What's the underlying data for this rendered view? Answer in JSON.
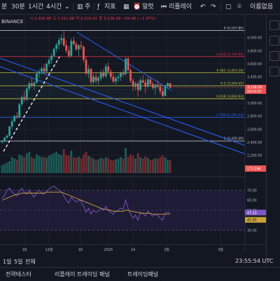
{
  "toolbar": {
    "timeframes": [
      "분",
      "30분",
      "1시간",
      "4시간"
    ],
    "candle_label": "주",
    "indicators_label": "지표",
    "alert_label": "얼럿",
    "replay_label": "리플레이",
    "undo_icon": "undo-icon",
    "redo_icon": "redo-icon",
    "right_label": "이름없음"
  },
  "legend": {
    "symbol": "BINANCE",
    "ohlc": "시 3,300.98 고 3,311.98 저 3,224.01 종 3,236.09 −64.90 (−1.97%)"
  },
  "price_axis": {
    "ticks": [
      "4,000.00",
      "3,800.00",
      "3,600.00",
      "3,400.00",
      "3,200.00",
      "3,000.00",
      "2,800.00",
      "2,600.00",
      "2,400.00",
      "2,200.00"
    ],
    "last_price": "3,236.09",
    "countdown": "09:04:00",
    "volume_badge": "173.59K",
    "rsi_values": [
      "70.00",
      "60.00",
      "50.00",
      "40.00",
      "30.00"
    ],
    "rsi_badge": "47.23",
    "rsi_ma_badge": "45.80"
  },
  "fib_levels": [
    {
      "label": "0 (4,107.80)",
      "price": 4107.8,
      "color": "#d1d4dc"
    },
    {
      "label": "0.236 (3,709.55)",
      "price": 3709.55,
      "color": "#f23645"
    },
    {
      "label": "0.382 (3,463.18)",
      "price": 3463.18,
      "color": "#c9c63a"
    },
    {
      "label": "0.5 (3,264.05)",
      "price": 3264.05,
      "color": "#c9c63a"
    },
    {
      "label": "0.618 (3,064.93)",
      "price": 3064.93,
      "color": "#c9c63a"
    },
    {
      "label": "0.786 (2,781.43)",
      "price": 2781.43,
      "color": "#2962ff"
    },
    {
      "label": "1 (2,420.30)",
      "price": 2420.3,
      "color": "#d1d4dc"
    }
  ],
  "time_axis": {
    "ticks": [
      "18",
      "12월",
      "16",
      "2025",
      "14",
      "2월",
      "3월"
    ]
  },
  "bottom_bar": {
    "ranges": [
      "1일",
      "5일",
      "전체"
    ],
    "time": "23:55:54 UTC",
    "tabs": [
      "전략테스터",
      "리플레이 트레이딩 패널",
      "트레이딩패널"
    ]
  },
  "chart_data": {
    "type": "candlestick",
    "y_range": [
      2100,
      4200
    ],
    "candles": [
      [
        2400,
        2430,
        2380,
        2410
      ],
      [
        2410,
        2480,
        2400,
        2470
      ],
      [
        2470,
        2520,
        2450,
        2500
      ],
      [
        2500,
        2650,
        2480,
        2640
      ],
      [
        2640,
        2760,
        2600,
        2720
      ],
      [
        2720,
        2820,
        2700,
        2800
      ],
      [
        2800,
        2860,
        2760,
        2780
      ],
      [
        2780,
        3000,
        2770,
        2980
      ],
      [
        2980,
        3120,
        2950,
        3090
      ],
      [
        3090,
        3180,
        3020,
        3050
      ],
      [
        3050,
        3240,
        3030,
        3220
      ],
      [
        3220,
        3330,
        3180,
        3300
      ],
      [
        3300,
        3380,
        3240,
        3260
      ],
      [
        3260,
        3330,
        3200,
        3310
      ],
      [
        3310,
        3470,
        3300,
        3450
      ],
      [
        3450,
        3520,
        3390,
        3480
      ],
      [
        3480,
        3560,
        3440,
        3530
      ],
      [
        3530,
        3600,
        3450,
        3480
      ],
      [
        3480,
        3620,
        3460,
        3600
      ],
      [
        3600,
        3700,
        3560,
        3660
      ],
      [
        3660,
        3760,
        3600,
        3720
      ],
      [
        3720,
        3850,
        3700,
        3830
      ],
      [
        3830,
        3920,
        3780,
        3890
      ],
      [
        3890,
        4000,
        3820,
        3960
      ],
      [
        3960,
        4050,
        3900,
        3990
      ],
      [
        3990,
        4107,
        3860,
        3880
      ],
      [
        3880,
        3960,
        3760,
        3800
      ],
      [
        3800,
        3870,
        3680,
        3720
      ],
      [
        3720,
        3990,
        3700,
        3950
      ],
      [
        3950,
        4010,
        3880,
        3900
      ],
      [
        3900,
        3940,
        3800,
        3820
      ],
      [
        3820,
        3900,
        3720,
        3880
      ],
      [
        3880,
        3950,
        3820,
        3860
      ],
      [
        3860,
        3880,
        3620,
        3660
      ],
      [
        3660,
        3720,
        3420,
        3450
      ],
      [
        3450,
        3580,
        3380,
        3520
      ],
      [
        3520,
        3540,
        3280,
        3320
      ],
      [
        3320,
        3440,
        3280,
        3400
      ],
      [
        3400,
        3470,
        3300,
        3340
      ],
      [
        3340,
        3420,
        3280,
        3380
      ],
      [
        3380,
        3500,
        3340,
        3460
      ],
      [
        3460,
        3520,
        3380,
        3410
      ],
      [
        3410,
        3600,
        3380,
        3560
      ],
      [
        3560,
        3620,
        3440,
        3480
      ],
      [
        3480,
        3520,
        3360,
        3400
      ],
      [
        3400,
        3460,
        3300,
        3330
      ],
      [
        3330,
        3420,
        3280,
        3380
      ],
      [
        3380,
        3440,
        3320,
        3400
      ],
      [
        3400,
        3480,
        3340,
        3460
      ],
      [
        3460,
        3520,
        3400,
        3440
      ],
      [
        3440,
        3700,
        3420,
        3680
      ],
      [
        3680,
        3700,
        3480,
        3500
      ],
      [
        3500,
        3540,
        3300,
        3340
      ],
      [
        3340,
        3380,
        3180,
        3250
      ],
      [
        3250,
        3320,
        3200,
        3300
      ],
      [
        3300,
        3340,
        3100,
        3200
      ],
      [
        3200,
        3380,
        3180,
        3350
      ],
      [
        3350,
        3420,
        3300,
        3310
      ],
      [
        3310,
        3360,
        3150,
        3250
      ],
      [
        3250,
        3400,
        3220,
        3360
      ],
      [
        3360,
        3400,
        3250,
        3290
      ],
      [
        3290,
        3330,
        3200,
        3230
      ],
      [
        3230,
        3300,
        3130,
        3280
      ],
      [
        3280,
        3350,
        3220,
        3250
      ],
      [
        3250,
        3300,
        3130,
        3180
      ],
      [
        3180,
        3240,
        3080,
        3110
      ],
      [
        3110,
        3280,
        3100,
        3260
      ],
      [
        3260,
        3320,
        3220,
        3300
      ],
      [
        3300,
        3312,
        3224,
        3236
      ]
    ],
    "volume": [
      30,
      35,
      40,
      45,
      60,
      55,
      50,
      70,
      65,
      60,
      75,
      80,
      60,
      55,
      70,
      65,
      60,
      62,
      58,
      66,
      70,
      75,
      80,
      72,
      68,
      90,
      70,
      65,
      85,
      60,
      58,
      62,
      55,
      70,
      80,
      65,
      60,
      55,
      50,
      52,
      58,
      54,
      60,
      56,
      50,
      48,
      52,
      54,
      60,
      55,
      95,
      60,
      70,
      65,
      55,
      75,
      60,
      55,
      62,
      58,
      50,
      52,
      56,
      54,
      60,
      66,
      58,
      50,
      48
    ],
    "rsi": [
      62,
      65,
      70,
      72,
      68,
      66,
      64,
      69,
      72,
      68,
      66,
      70,
      66,
      63,
      68,
      70,
      67,
      66,
      69,
      71,
      73,
      74,
      72,
      70,
      68,
      64,
      60,
      57,
      63,
      60,
      58,
      60,
      59,
      54,
      48,
      52,
      46,
      50,
      48,
      49,
      52,
      50,
      54,
      50,
      48,
      46,
      49,
      50,
      52,
      51,
      60,
      52,
      46,
      42,
      45,
      40,
      48,
      47,
      44,
      49,
      46,
      44,
      46,
      45,
      42,
      40,
      47,
      48,
      47
    ],
    "rsi_ma": [
      60,
      61,
      62,
      63,
      64,
      65,
      66,
      66,
      67,
      67,
      67,
      67,
      67,
      67,
      67,
      67,
      67,
      67,
      68,
      68,
      68,
      68,
      68,
      68,
      68,
      67,
      66,
      65,
      64,
      63,
      62,
      61,
      60,
      59,
      58,
      57,
      56,
      55,
      54,
      53,
      52,
      51,
      51,
      50,
      50,
      49,
      49,
      49,
      49,
      49,
      50,
      50,
      49,
      49,
      48,
      48,
      47,
      47,
      47,
      47,
      47,
      46,
      46,
      46,
      46,
      46,
      46,
      46,
      46
    ]
  }
}
